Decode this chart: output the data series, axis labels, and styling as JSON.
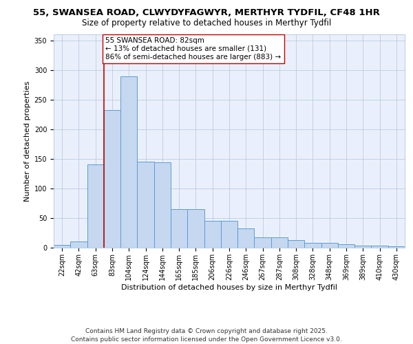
{
  "title_line1": "55, SWANSEA ROAD, CLWYDYFAGWYR, MERTHYR TYDFIL, CF48 1HR",
  "title_line2": "Size of property relative to detached houses in Merthyr Tydfil",
  "xlabel": "Distribution of detached houses by size in Merthyr Tydfil",
  "ylabel": "Number of detached properties",
  "categories": [
    "22sqm",
    "42sqm",
    "63sqm",
    "83sqm",
    "104sqm",
    "124sqm",
    "144sqm",
    "165sqm",
    "185sqm",
    "206sqm",
    "226sqm",
    "246sqm",
    "267sqm",
    "287sqm",
    "308sqm",
    "328sqm",
    "348sqm",
    "369sqm",
    "389sqm",
    "410sqm",
    "430sqm"
  ],
  "bar_heights": [
    5,
    11,
    140,
    232,
    289,
    145,
    144,
    65,
    65,
    45,
    45,
    32,
    18,
    18,
    13,
    8,
    8,
    6,
    4,
    3,
    2
  ],
  "bar_color": "#c5d8f0",
  "bar_edge_color": "#5b9bd5",
  "vline_color": "#c00000",
  "vline_x": 2.5,
  "annotation_text": "55 SWANSEA ROAD: 82sqm\n← 13% of detached houses are smaller (131)\n86% of semi-detached houses are larger (883) →",
  "annotation_box_color": "#ffffff",
  "annotation_box_edge": "#c00000",
  "ylim": [
    0,
    360
  ],
  "yticks": [
    0,
    50,
    100,
    150,
    200,
    250,
    300,
    350
  ],
  "background_color": "#eaf0fb",
  "footer": "Contains HM Land Registry data © Crown copyright and database right 2025.\nContains public sector information licensed under the Open Government Licence v3.0.",
  "title_fontsize": 9.5,
  "subtitle_fontsize": 8.5,
  "axis_label_fontsize": 8,
  "tick_fontsize": 7,
  "annotation_fontsize": 7.5,
  "footer_fontsize": 6.5
}
